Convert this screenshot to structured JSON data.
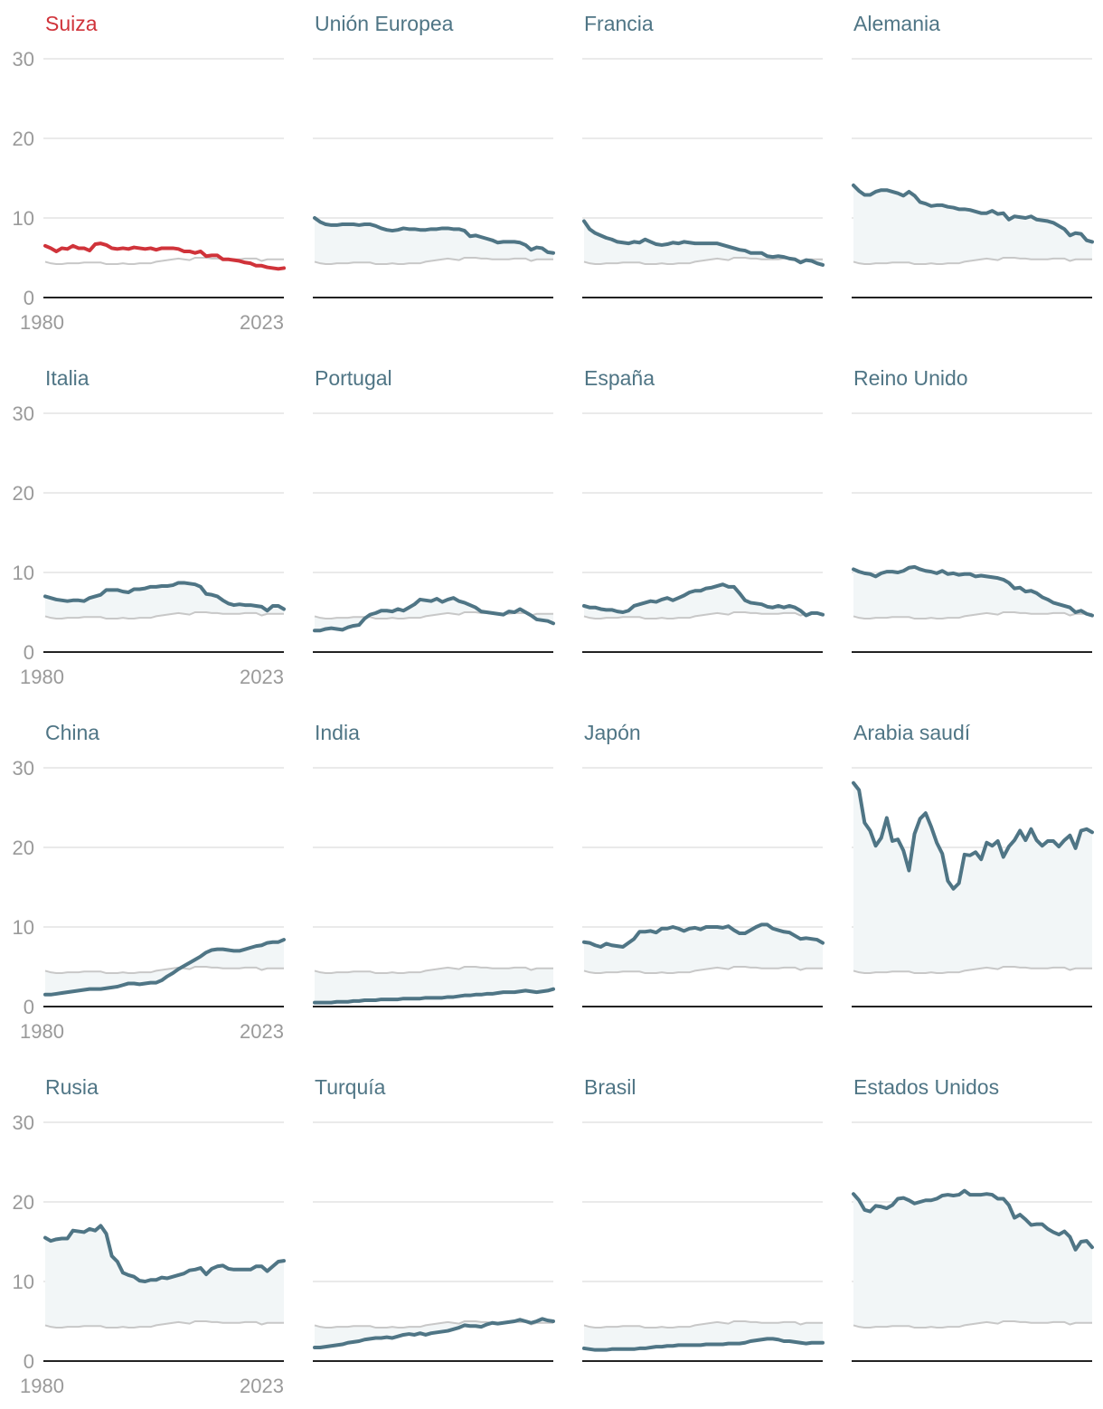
{
  "chart_data": {
    "type": "line",
    "x_range": [
      1980,
      2023
    ],
    "ylim": [
      0,
      30
    ],
    "y_ticks": [
      0,
      10,
      20,
      30
    ],
    "x_tick_labels": [
      "1980",
      "2023"
    ],
    "colors": {
      "highlight": "#d0333a",
      "series": "#4f7585",
      "area_fill": "#f2f6f7",
      "reference": "#c8c8c8",
      "grid": "#e3e3e3",
      "baseline": "#222222",
      "tick": "#9a9a9a"
    },
    "reference_values": [
      4.5,
      4.3,
      4.2,
      4.2,
      4.3,
      4.3,
      4.3,
      4.4,
      4.4,
      4.4,
      4.4,
      4.2,
      4.2,
      4.2,
      4.3,
      4.2,
      4.2,
      4.3,
      4.3,
      4.3,
      4.5,
      4.6,
      4.7,
      4.8,
      4.9,
      4.8,
      4.7,
      5.0,
      5.0,
      5.0,
      4.9,
      4.9,
      4.8,
      4.8,
      4.8,
      4.8,
      4.9,
      4.9,
      4.9,
      4.6,
      4.8,
      4.8,
      4.8,
      4.8
    ],
    "panels": [
      {
        "title": "Suiza",
        "highlight": true,
        "values": [
          6.5,
          6.2,
          5.8,
          6.2,
          6.1,
          6.5,
          6.2,
          6.2,
          5.9,
          6.7,
          6.8,
          6.6,
          6.2,
          6.1,
          6.2,
          6.1,
          6.3,
          6.2,
          6.1,
          6.2,
          6.0,
          6.2,
          6.2,
          6.2,
          6.1,
          5.8,
          5.8,
          5.6,
          5.8,
          5.2,
          5.3,
          5.3,
          4.8,
          4.8,
          4.7,
          4.6,
          4.4,
          4.3,
          4.0,
          4.0,
          3.8,
          3.7,
          3.6,
          3.7
        ]
      },
      {
        "title": "Unión Europea",
        "values": [
          10.0,
          9.5,
          9.2,
          9.1,
          9.1,
          9.2,
          9.2,
          9.2,
          9.1,
          9.2,
          9.2,
          9.0,
          8.7,
          8.5,
          8.4,
          8.5,
          8.7,
          8.6,
          8.6,
          8.5,
          8.5,
          8.6,
          8.6,
          8.7,
          8.7,
          8.6,
          8.6,
          8.4,
          7.7,
          7.8,
          7.6,
          7.4,
          7.2,
          6.9,
          7.0,
          7.0,
          7.0,
          6.9,
          6.6,
          6.0,
          6.3,
          6.2,
          5.7,
          5.6
        ]
      },
      {
        "title": "Francia",
        "values": [
          9.6,
          8.6,
          8.1,
          7.8,
          7.5,
          7.3,
          7.0,
          6.9,
          6.8,
          7.0,
          6.9,
          7.3,
          7.0,
          6.7,
          6.6,
          6.7,
          6.9,
          6.8,
          7.0,
          6.9,
          6.8,
          6.8,
          6.8,
          6.8,
          6.8,
          6.6,
          6.4,
          6.2,
          6.0,
          5.9,
          5.6,
          5.6,
          5.6,
          5.2,
          5.1,
          5.2,
          5.1,
          4.9,
          4.8,
          4.4,
          4.7,
          4.6,
          4.3,
          4.1
        ]
      },
      {
        "title": "Alemania",
        "values": [
          14.1,
          13.4,
          12.9,
          12.9,
          13.3,
          13.5,
          13.5,
          13.3,
          13.1,
          12.8,
          13.3,
          12.8,
          12.0,
          11.8,
          11.5,
          11.6,
          11.6,
          11.4,
          11.3,
          11.1,
          11.1,
          11.0,
          10.8,
          10.6,
          10.6,
          10.9,
          10.5,
          10.6,
          9.8,
          10.2,
          10.1,
          10.0,
          10.2,
          9.8,
          9.7,
          9.6,
          9.4,
          9.0,
          8.6,
          7.8,
          8.1,
          8.0,
          7.2,
          7.0
        ]
      },
      {
        "title": "Italia",
        "values": [
          7.0,
          6.8,
          6.6,
          6.5,
          6.4,
          6.5,
          6.5,
          6.4,
          6.8,
          7.0,
          7.2,
          7.8,
          7.8,
          7.8,
          7.6,
          7.5,
          7.9,
          7.9,
          8.0,
          8.2,
          8.2,
          8.3,
          8.3,
          8.4,
          8.7,
          8.7,
          8.6,
          8.5,
          8.2,
          7.3,
          7.2,
          7.0,
          6.5,
          6.1,
          5.9,
          6.0,
          5.9,
          5.9,
          5.8,
          5.7,
          5.2,
          5.8,
          5.8,
          5.4
        ]
      },
      {
        "title": "Portugal",
        "values": [
          2.7,
          2.7,
          2.9,
          3.0,
          2.9,
          2.8,
          3.1,
          3.3,
          3.4,
          4.2,
          4.7,
          4.9,
          5.2,
          5.2,
          5.1,
          5.4,
          5.2,
          5.6,
          6.0,
          6.6,
          6.5,
          6.4,
          6.7,
          6.3,
          6.6,
          6.8,
          6.4,
          6.2,
          5.9,
          5.6,
          5.1,
          5.0,
          4.9,
          4.8,
          4.7,
          5.1,
          5.0,
          5.4,
          5.0,
          4.6,
          4.1,
          4.0,
          3.9,
          3.6
        ]
      },
      {
        "title": "España",
        "values": [
          5.8,
          5.6,
          5.6,
          5.4,
          5.3,
          5.3,
          5.1,
          5.0,
          5.2,
          5.8,
          6.0,
          6.2,
          6.4,
          6.3,
          6.6,
          6.8,
          6.5,
          6.8,
          7.1,
          7.5,
          7.7,
          7.7,
          8.0,
          8.1,
          8.3,
          8.5,
          8.2,
          8.2,
          7.4,
          6.5,
          6.2,
          6.1,
          6.0,
          5.7,
          5.6,
          5.8,
          5.6,
          5.8,
          5.6,
          5.2,
          4.6,
          4.9,
          4.9,
          4.7
        ]
      },
      {
        "title": "Reino Unido",
        "values": [
          10.4,
          10.1,
          9.9,
          9.8,
          9.5,
          9.9,
          10.1,
          10.1,
          10.0,
          10.2,
          10.6,
          10.7,
          10.4,
          10.2,
          10.1,
          9.9,
          10.2,
          9.8,
          9.9,
          9.7,
          9.8,
          9.8,
          9.5,
          9.6,
          9.5,
          9.4,
          9.3,
          9.1,
          8.7,
          8.0,
          8.1,
          7.6,
          7.7,
          7.4,
          6.9,
          6.6,
          6.2,
          6.0,
          5.8,
          5.6,
          5.0,
          5.2,
          4.8,
          4.6
        ]
      },
      {
        "title": "China",
        "values": [
          1.5,
          1.5,
          1.6,
          1.7,
          1.8,
          1.9,
          2.0,
          2.1,
          2.2,
          2.2,
          2.2,
          2.3,
          2.4,
          2.5,
          2.7,
          2.9,
          2.9,
          2.8,
          2.9,
          3.0,
          3.0,
          3.3,
          3.8,
          4.2,
          4.7,
          5.1,
          5.5,
          5.9,
          6.3,
          6.8,
          7.1,
          7.2,
          7.2,
          7.1,
          7.0,
          7.0,
          7.2,
          7.4,
          7.6,
          7.7,
          8.0,
          8.1,
          8.1,
          8.4
        ]
      },
      {
        "title": "India",
        "values": [
          0.5,
          0.5,
          0.5,
          0.5,
          0.6,
          0.6,
          0.6,
          0.7,
          0.7,
          0.8,
          0.8,
          0.8,
          0.9,
          0.9,
          0.9,
          0.9,
          1.0,
          1.0,
          1.0,
          1.0,
          1.1,
          1.1,
          1.1,
          1.1,
          1.2,
          1.2,
          1.3,
          1.4,
          1.4,
          1.5,
          1.5,
          1.6,
          1.6,
          1.7,
          1.8,
          1.8,
          1.8,
          1.9,
          2.0,
          1.9,
          1.8,
          1.9,
          2.0,
          2.2
        ]
      },
      {
        "title": "Japón",
        "values": [
          8.1,
          8.0,
          7.7,
          7.5,
          7.9,
          7.7,
          7.6,
          7.5,
          8.0,
          8.5,
          9.4,
          9.4,
          9.5,
          9.3,
          9.8,
          9.8,
          10.0,
          9.8,
          9.5,
          9.8,
          9.9,
          9.7,
          10.0,
          10.0,
          10.0,
          9.9,
          10.1,
          9.6,
          9.2,
          9.2,
          9.6,
          10.0,
          10.3,
          10.3,
          9.8,
          9.6,
          9.4,
          9.3,
          8.9,
          8.5,
          8.6,
          8.5,
          8.4,
          8.0
        ]
      },
      {
        "title": "Arabia saudí",
        "values": [
          28.1,
          27.2,
          23.1,
          22.1,
          20.2,
          21.2,
          23.7,
          20.8,
          21.0,
          19.6,
          17.1,
          21.7,
          23.6,
          24.3,
          22.6,
          20.6,
          19.2,
          15.8,
          14.8,
          15.5,
          19.1,
          19.0,
          19.4,
          18.5,
          20.6,
          20.2,
          20.8,
          18.8,
          20.1,
          20.9,
          22.1,
          20.9,
          22.3,
          20.9,
          20.2,
          20.8,
          20.8,
          20.1,
          20.9,
          21.5,
          19.9,
          22.1,
          22.3,
          21.9
        ]
      },
      {
        "title": "Rusia",
        "values": [
          15.5,
          15.1,
          15.3,
          15.4,
          15.4,
          16.4,
          16.3,
          16.2,
          16.6,
          16.4,
          17.0,
          16.0,
          13.2,
          12.5,
          11.1,
          10.8,
          10.6,
          10.1,
          10.0,
          10.2,
          10.2,
          10.5,
          10.4,
          10.6,
          10.8,
          11.0,
          11.4,
          11.5,
          11.7,
          10.9,
          11.6,
          11.9,
          12.0,
          11.6,
          11.5,
          11.5,
          11.5,
          11.5,
          11.9,
          11.9,
          11.3,
          11.9,
          12.5,
          12.6
        ]
      },
      {
        "title": "Turquía",
        "values": [
          1.7,
          1.7,
          1.8,
          1.9,
          2.0,
          2.1,
          2.3,
          2.4,
          2.5,
          2.7,
          2.8,
          2.9,
          2.9,
          3.0,
          2.9,
          3.1,
          3.3,
          3.4,
          3.3,
          3.5,
          3.3,
          3.5,
          3.6,
          3.7,
          3.8,
          4.0,
          4.2,
          4.5,
          4.4,
          4.4,
          4.3,
          4.6,
          4.8,
          4.7,
          4.8,
          4.9,
          5.0,
          5.2,
          5.0,
          4.8,
          5.0,
          5.3,
          5.1,
          5.0
        ]
      },
      {
        "title": "Brasil",
        "values": [
          1.6,
          1.5,
          1.4,
          1.4,
          1.4,
          1.5,
          1.5,
          1.5,
          1.5,
          1.5,
          1.6,
          1.6,
          1.7,
          1.8,
          1.8,
          1.9,
          1.9,
          2.0,
          2.0,
          2.0,
          2.0,
          2.0,
          2.1,
          2.1,
          2.1,
          2.1,
          2.2,
          2.2,
          2.2,
          2.3,
          2.5,
          2.6,
          2.7,
          2.8,
          2.8,
          2.7,
          2.5,
          2.5,
          2.4,
          2.3,
          2.2,
          2.3,
          2.3,
          2.3
        ]
      },
      {
        "title": "Estados Unidos",
        "values": [
          21.0,
          20.2,
          19.0,
          18.8,
          19.5,
          19.4,
          19.2,
          19.6,
          20.4,
          20.5,
          20.2,
          19.8,
          20.0,
          20.2,
          20.2,
          20.4,
          20.8,
          20.9,
          20.8,
          20.9,
          21.4,
          20.9,
          20.9,
          20.9,
          21.0,
          20.9,
          20.4,
          20.4,
          19.6,
          18.0,
          18.4,
          17.8,
          17.1,
          17.2,
          17.2,
          16.6,
          16.2,
          15.9,
          16.3,
          15.6,
          14.0,
          15.0,
          15.1,
          14.3
        ]
      }
    ]
  }
}
